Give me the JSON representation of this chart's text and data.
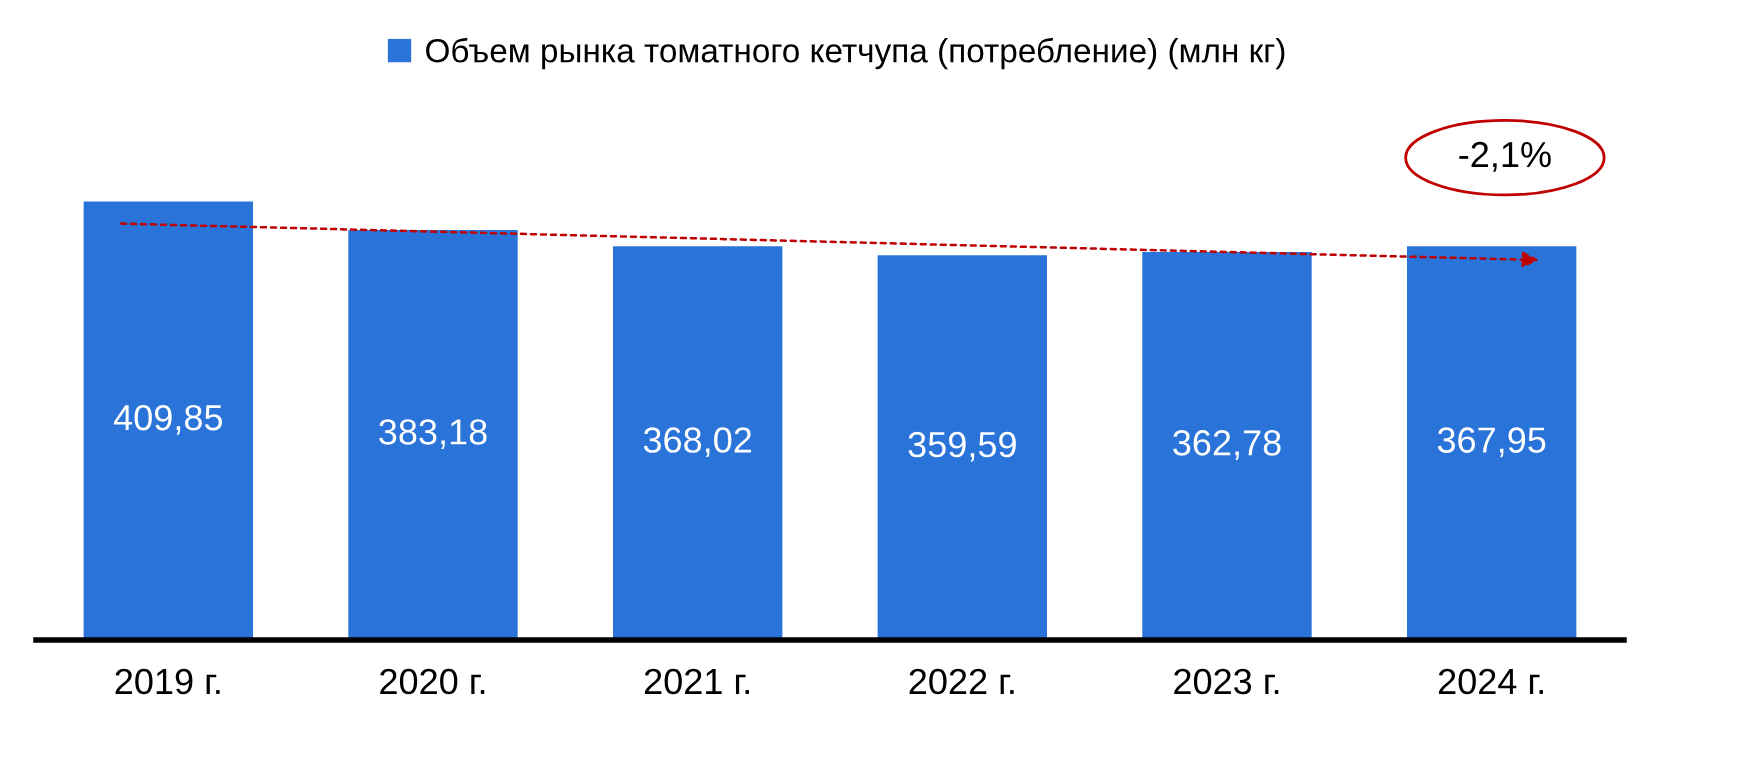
{
  "chart_data": {
    "type": "bar",
    "categories": [
      "2019 г.",
      "2020 г.",
      "2021 г.",
      "2022 г.",
      "2023 г.",
      "2024 г."
    ],
    "series": [
      {
        "name": "Объем рынка томатного кетчупа (потребление) (млн кг)",
        "color": "#2a74d9",
        "values": [
          409.85,
          383.18,
          368.02,
          359.59,
          362.78,
          367.95
        ],
        "value_labels": [
          "409,85",
          "383,18",
          "368,02",
          "359,59",
          "362,78",
          "367,95"
        ]
      }
    ],
    "annotations": [
      "-2,1%"
    ],
    "legend": "top",
    "grid": false
  }
}
